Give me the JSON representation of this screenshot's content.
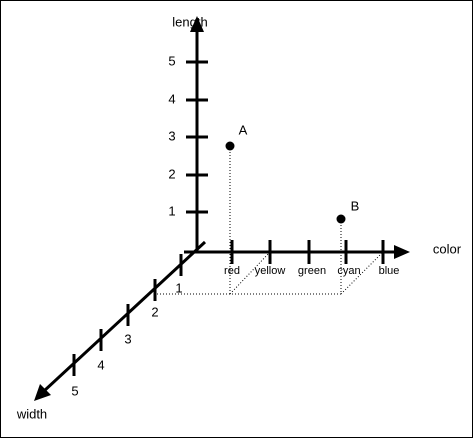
{
  "axes": {
    "length": {
      "label": "length",
      "ticks": [
        "1",
        "2",
        "3",
        "4",
        "5"
      ]
    },
    "color": {
      "label": "color",
      "ticks": [
        "red",
        "yellow",
        "green",
        "cyan",
        "blue"
      ]
    },
    "width": {
      "label": "width",
      "ticks": [
        "1",
        "2",
        "3",
        "4",
        "5"
      ]
    }
  },
  "points": [
    {
      "label": "A"
    },
    {
      "label": "B"
    }
  ]
}
